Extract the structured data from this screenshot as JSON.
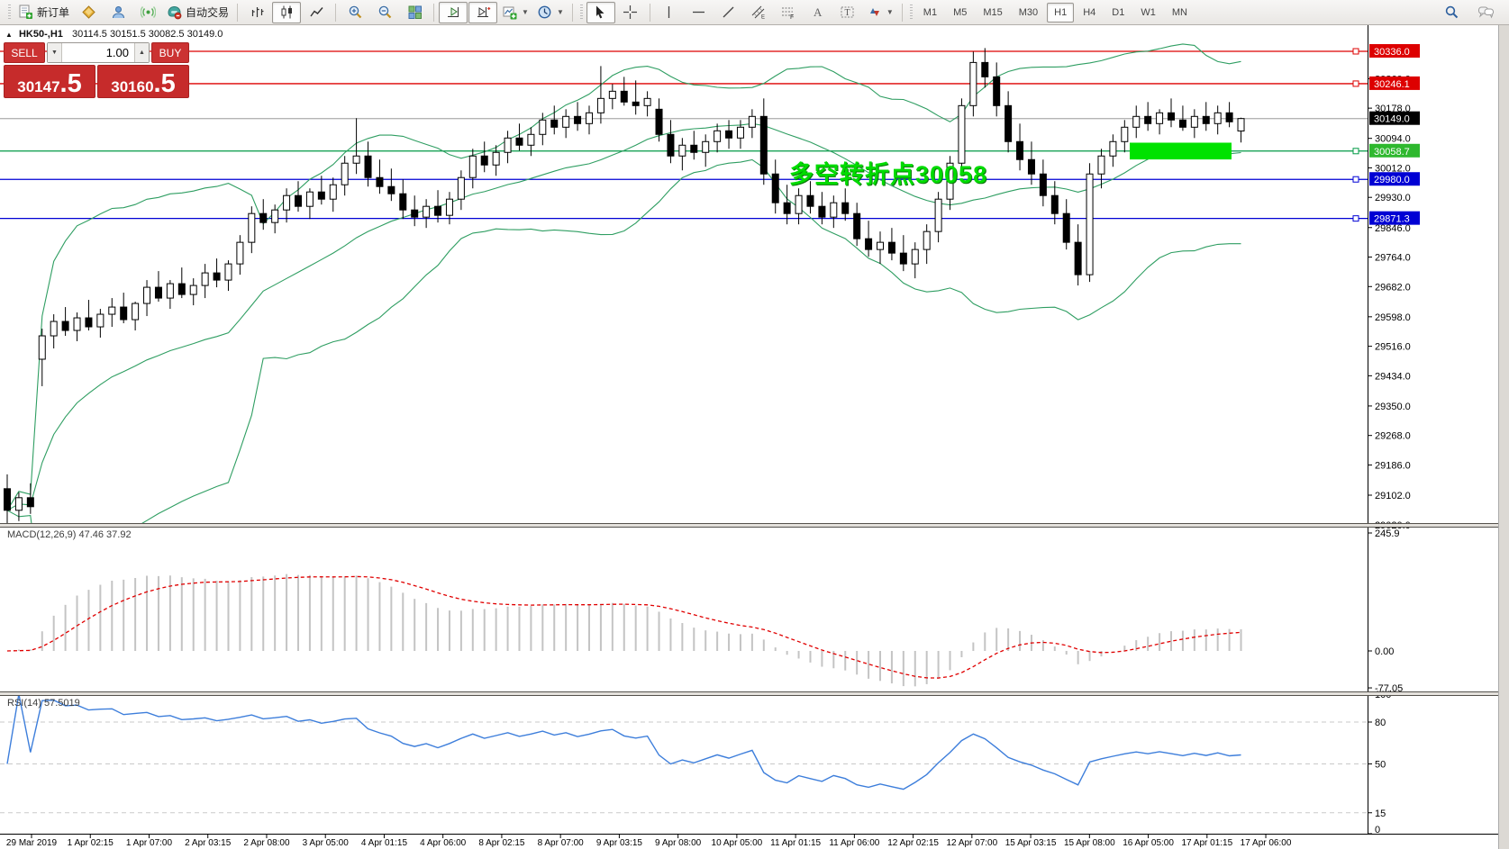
{
  "toolbar": {
    "new_order_label": "新订单",
    "autotrading_label": "自动交易",
    "timeframes": [
      "M1",
      "M5",
      "M15",
      "M30",
      "H1",
      "H4",
      "D1",
      "W1",
      "MN"
    ],
    "active_timeframe": "H1"
  },
  "chart_header": {
    "collapse_glyph": "▲",
    "symbol_period": "HK50-,H1",
    "ohlc": "30114.5 30151.5 30082.5 30149.0"
  },
  "trade_panel": {
    "sell_label": "SELL",
    "buy_label": "BUY",
    "volume": "1.00",
    "sell_price_int": "30147",
    "sell_price_dec": ".5",
    "buy_price_int": "30160",
    "buy_price_dec": ".5"
  },
  "macd_panel": {
    "label": "MACD(12,26,9) 47.46 37.92",
    "axis_ticks": [
      "245.9",
      "0.00",
      "-77.05"
    ]
  },
  "rsi_panel": {
    "label": "RSI(14) 57.5019",
    "axis_ticks": [
      "100",
      "80",
      "50",
      "15",
      "0"
    ]
  },
  "annotation": {
    "text": "多空转折点30058"
  },
  "price_axis": {
    "ticks": [
      "30260.0",
      "30178.0",
      "30094.0",
      "30012.0",
      "29930.0",
      "29846.0",
      "29764.0",
      "29682.0",
      "29598.0",
      "29516.0",
      "29434.0",
      "29350.0",
      "29268.0",
      "29186.0",
      "29102.0",
      "29020.0"
    ]
  },
  "time_axis": {
    "labels": [
      "29 Mar 2019",
      "1 Apr 02:15",
      "1 Apr 07:00",
      "2 Apr 03:15",
      "2 Apr 08:00",
      "3 Apr 05:00",
      "4 Apr 01:15",
      "4 Apr 06:00",
      "8 Apr 02:15",
      "8 Apr 07:00",
      "9 Apr 03:15",
      "9 Apr 08:00",
      "10 Apr 05:00",
      "11 Apr 01:15",
      "11 Apr 06:00",
      "12 Apr 02:15",
      "12 Apr 07:00",
      "15 Apr 03:15",
      "15 Apr 08:00",
      "16 Apr 05:00",
      "17 Apr 01:15",
      "17 Apr 06:00"
    ]
  },
  "chart_data": {
    "type": "candlestick",
    "symbol": "HK50-",
    "timeframe": "H1",
    "last_bar": {
      "open": 30114.5,
      "high": 30151.5,
      "low": 30082.5,
      "close": 30149.0
    },
    "ylim": [
      29020,
      30360
    ],
    "levels": [
      {
        "price": 30336.0,
        "label": "30336.0",
        "color": "#dd0000",
        "kind": "resistance"
      },
      {
        "price": 30246.1,
        "label": "30246.1",
        "color": "#dd0000",
        "kind": "resistance"
      },
      {
        "price": 30149.0,
        "label": "30149.0",
        "color": "#000000",
        "line_color": "#b4b4b4",
        "kind": "current-price"
      },
      {
        "price": 30058.7,
        "label": "30058.7",
        "color": "#009a44",
        "label_bg": "#2eb82e",
        "kind": "pivot"
      },
      {
        "price": 29980.0,
        "label": "29980.0",
        "color": "#0000d4",
        "kind": "support"
      },
      {
        "price": 29871.3,
        "label": "29871.3",
        "color": "#0000d4",
        "kind": "support"
      }
    ],
    "highlight_rect": {
      "price": 30058.7,
      "color": "#00e200"
    },
    "bollinger": {
      "period": 20,
      "deviation": 2,
      "color": "#2f9e62"
    },
    "macd": {
      "params": [
        12,
        26,
        9
      ],
      "current": [
        47.46,
        37.92
      ],
      "ylim": [
        -77.05,
        245.9
      ],
      "bar_color": "#c4c4c4",
      "signal_color": "#e00000"
    },
    "rsi": {
      "period": 14,
      "current": 57.5019,
      "levels": [
        80,
        50,
        15
      ],
      "line_color": "#3d7edb"
    },
    "candles": [
      [
        29120,
        29160,
        29020,
        29060
      ],
      [
        29060,
        29110,
        29030,
        29095
      ],
      [
        29095,
        29135,
        29050,
        29070
      ],
      [
        29480,
        29565,
        29405,
        29545
      ],
      [
        29545,
        29605,
        29510,
        29585
      ],
      [
        29585,
        29625,
        29545,
        29560
      ],
      [
        29560,
        29610,
        29530,
        29595
      ],
      [
        29595,
        29645,
        29560,
        29570
      ],
      [
        29570,
        29620,
        29540,
        29605
      ],
      [
        29605,
        29650,
        29570,
        29625
      ],
      [
        29625,
        29665,
        29580,
        29590
      ],
      [
        29590,
        29640,
        29560,
        29635
      ],
      [
        29635,
        29700,
        29600,
        29680
      ],
      [
        29680,
        29725,
        29640,
        29650
      ],
      [
        29650,
        29700,
        29620,
        29690
      ],
      [
        29690,
        29735,
        29650,
        29660
      ],
      [
        29660,
        29705,
        29630,
        29685
      ],
      [
        29685,
        29745,
        29650,
        29720
      ],
      [
        29720,
        29760,
        29680,
        29700
      ],
      [
        29700,
        29755,
        29670,
        29745
      ],
      [
        29745,
        29825,
        29715,
        29805
      ],
      [
        29805,
        29905,
        29775,
        29885
      ],
      [
        29885,
        29925,
        29840,
        29860
      ],
      [
        29860,
        29910,
        29830,
        29895
      ],
      [
        29895,
        29955,
        29860,
        29935
      ],
      [
        29935,
        29975,
        29890,
        29905
      ],
      [
        29905,
        29955,
        29870,
        29945
      ],
      [
        29945,
        29990,
        29910,
        29925
      ],
      [
        29925,
        29985,
        29890,
        29965
      ],
      [
        29965,
        30045,
        29935,
        30025
      ],
      [
        30025,
        30150,
        29995,
        30045
      ],
      [
        30045,
        30085,
        29960,
        29985
      ],
      [
        29985,
        30035,
        29940,
        29960
      ],
      [
        29960,
        30010,
        29920,
        29940
      ],
      [
        29940,
        29980,
        29870,
        29895
      ],
      [
        29895,
        29935,
        29850,
        29875
      ],
      [
        29875,
        29925,
        29845,
        29905
      ],
      [
        29905,
        29950,
        29860,
        29880
      ],
      [
        29880,
        29945,
        29855,
        29925
      ],
      [
        29925,
        30005,
        29895,
        29985
      ],
      [
        29985,
        30065,
        29955,
        30045
      ],
      [
        30045,
        30085,
        30000,
        30020
      ],
      [
        30020,
        30075,
        29990,
        30055
      ],
      [
        30055,
        30115,
        30025,
        30095
      ],
      [
        30095,
        30135,
        30060,
        30075
      ],
      [
        30075,
        30125,
        30045,
        30105
      ],
      [
        30105,
        30165,
        30075,
        30145
      ],
      [
        30145,
        30185,
        30105,
        30125
      ],
      [
        30125,
        30175,
        30095,
        30155
      ],
      [
        30155,
        30195,
        30115,
        30135
      ],
      [
        30135,
        30185,
        30105,
        30165
      ],
      [
        30165,
        30295,
        30135,
        30205
      ],
      [
        30205,
        30245,
        30175,
        30225
      ],
      [
        30225,
        30265,
        30185,
        30195
      ],
      [
        30195,
        30255,
        30160,
        30185
      ],
      [
        30185,
        30225,
        30155,
        30205
      ],
      [
        30175,
        30205,
        30085,
        30105
      ],
      [
        30105,
        30145,
        30025,
        30045
      ],
      [
        30045,
        30095,
        30005,
        30075
      ],
      [
        30075,
        30115,
        30035,
        30055
      ],
      [
        30055,
        30105,
        30015,
        30085
      ],
      [
        30085,
        30135,
        30055,
        30115
      ],
      [
        30115,
        30145,
        30065,
        30095
      ],
      [
        30095,
        30145,
        30065,
        30125
      ],
      [
        30125,
        30175,
        30095,
        30155
      ],
      [
        30155,
        30205,
        29965,
        29995
      ],
      [
        29995,
        30035,
        29885,
        29915
      ],
      [
        29915,
        29965,
        29855,
        29885
      ],
      [
        29885,
        29955,
        29855,
        29935
      ],
      [
        29935,
        29975,
        29885,
        29905
      ],
      [
        29905,
        29945,
        29855,
        29875
      ],
      [
        29875,
        29935,
        29845,
        29915
      ],
      [
        29915,
        29955,
        29865,
        29885
      ],
      [
        29885,
        29915,
        29795,
        29815
      ],
      [
        29815,
        29865,
        29765,
        29785
      ],
      [
        29785,
        29835,
        29745,
        29805
      ],
      [
        29805,
        29845,
        29755,
        29775
      ],
      [
        29775,
        29825,
        29725,
        29745
      ],
      [
        29745,
        29805,
        29705,
        29785
      ],
      [
        29785,
        29855,
        29745,
        29835
      ],
      [
        29835,
        29945,
        29805,
        29925
      ],
      [
        29925,
        30045,
        29895,
        30025
      ],
      [
        30025,
        30205,
        29995,
        30185
      ],
      [
        30185,
        30335,
        30155,
        30305
      ],
      [
        30305,
        30345,
        30235,
        30265
      ],
      [
        30265,
        30305,
        30155,
        30185
      ],
      [
        30185,
        30225,
        30055,
        30085
      ],
      [
        30085,
        30135,
        30005,
        30035
      ],
      [
        30035,
        30085,
        29965,
        29995
      ],
      [
        29995,
        30035,
        29905,
        29935
      ],
      [
        29935,
        29975,
        29855,
        29885
      ],
      [
        29885,
        29925,
        29785,
        29805
      ],
      [
        29805,
        29855,
        29685,
        29715
      ],
      [
        29715,
        30025,
        29695,
        29995
      ],
      [
        29995,
        30065,
        29955,
        30045
      ],
      [
        30045,
        30105,
        30015,
        30085
      ],
      [
        30085,
        30145,
        30055,
        30125
      ],
      [
        30125,
        30185,
        30095,
        30155
      ],
      [
        30155,
        30195,
        30115,
        30135
      ],
      [
        30135,
        30175,
        30105,
        30165
      ],
      [
        30165,
        30205,
        30125,
        30145
      ],
      [
        30145,
        30185,
        30115,
        30125
      ],
      [
        30125,
        30175,
        30095,
        30155
      ],
      [
        30155,
        30195,
        30115,
        30135
      ],
      [
        30135,
        30185,
        30105,
        30165
      ],
      [
        30165,
        30195,
        30125,
        30140
      ],
      [
        30114.5,
        30151.5,
        30082.5,
        30149
      ]
    ]
  }
}
